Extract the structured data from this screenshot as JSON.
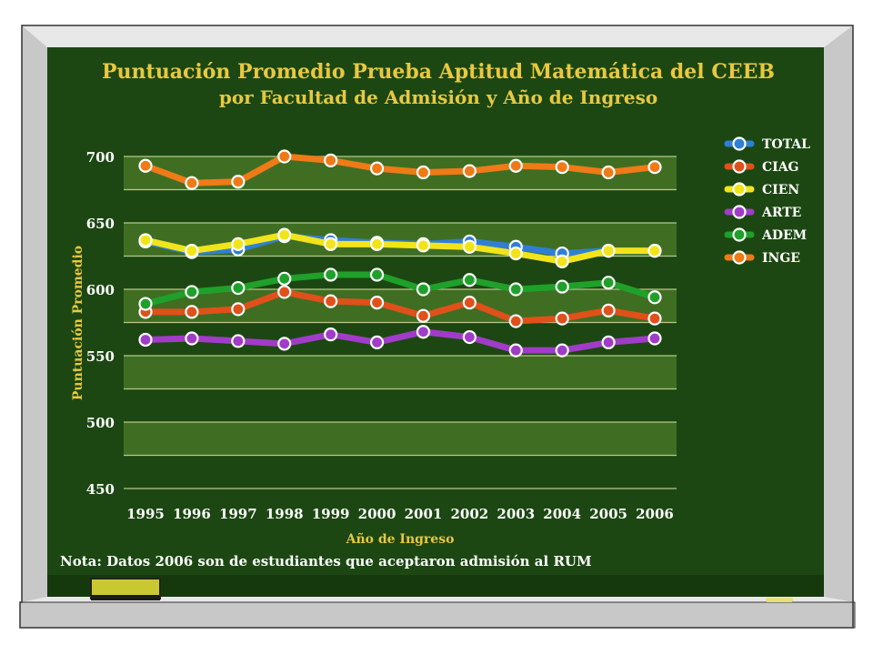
{
  "colors": {
    "board": "#1c4712",
    "frame_light": "#e8e8e8",
    "frame_mid": "#c8c8c8",
    "frame_dark": "#8c8c8c",
    "band": "#3f6e22",
    "gridline": "#b9c98a",
    "title": "#e8c840",
    "axis_text": "#e8c840",
    "tick_text": "#ffffff",
    "note_text": "#ffffff",
    "eraser": "#c9c832",
    "chalk": "#e6e07a"
  },
  "chart_data": {
    "type": "line",
    "title": "Puntuación Promedio Prueba Aptitud Matemática del CEEB",
    "subtitle": "por Facultad de Admisión y Año de Ingreso",
    "xlabel": "Año de Ingreso",
    "ylabel": "Puntuación Promedio",
    "categories": [
      "1995",
      "1996",
      "1997",
      "1998",
      "1999",
      "2000",
      "2001",
      "2002",
      "2003",
      "2004",
      "2005",
      "2006"
    ],
    "ylim": [
      450,
      700
    ],
    "yticks": [
      "450",
      "500",
      "550",
      "600",
      "650",
      "700"
    ],
    "grid": true,
    "legend_position": "right",
    "series": [
      {
        "name": "TOTAL",
        "color": "#2f7fd6",
        "values": [
          636,
          628,
          630,
          640,
          637,
          635,
          634,
          636,
          632,
          627,
          629,
          629
        ]
      },
      {
        "name": "CIAG",
        "color": "#e0501a",
        "values": [
          583,
          583,
          585,
          598,
          591,
          590,
          580,
          590,
          576,
          578,
          584,
          578
        ]
      },
      {
        "name": "CIEN",
        "color": "#f2e41a",
        "values": [
          637,
          629,
          634,
          641,
          634,
          634,
          633,
          632,
          627,
          621,
          629,
          629
        ]
      },
      {
        "name": "ARTE",
        "color": "#a03cc8",
        "values": [
          562,
          563,
          561,
          559,
          566,
          560,
          568,
          564,
          554,
          554,
          560,
          563
        ]
      },
      {
        "name": "ADEM",
        "color": "#1fa02a",
        "values": [
          589,
          598,
          601,
          608,
          611,
          611,
          600,
          607,
          600,
          602,
          605,
          594
        ]
      },
      {
        "name": "INGE",
        "color": "#ee7a18",
        "values": [
          693,
          680,
          681,
          700,
          697,
          691,
          688,
          689,
          693,
          692,
          688,
          692
        ]
      }
    ]
  },
  "note": "Nota:  Datos 2006 son de estudiantes que aceptaron admisión al RUM"
}
